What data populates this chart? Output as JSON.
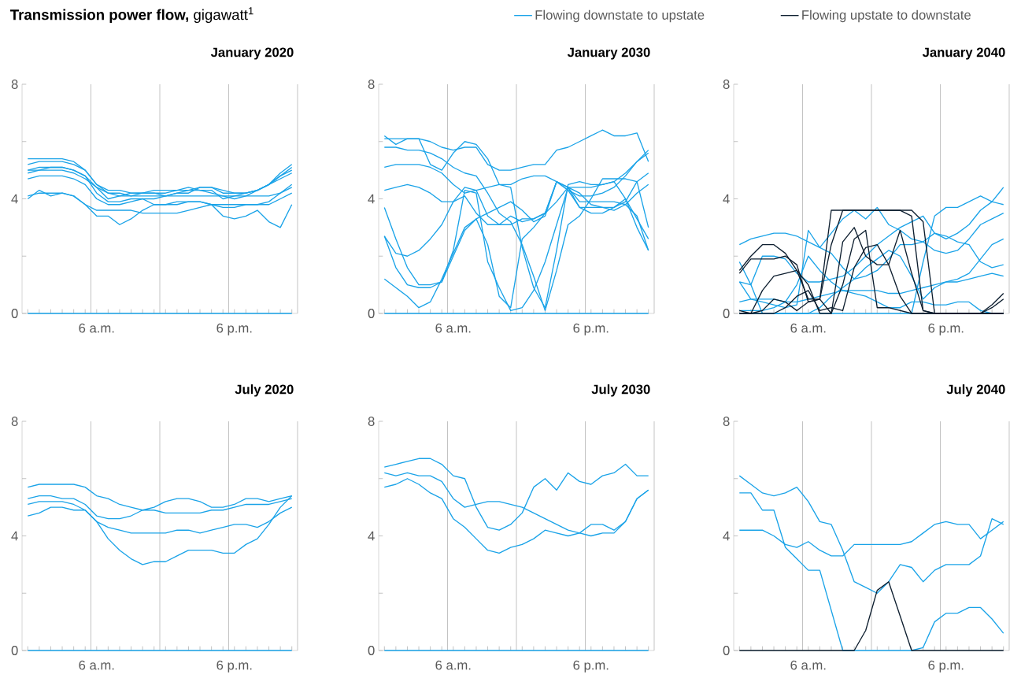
{
  "chart_data": [
    {
      "type": "line",
      "title": "January 2020",
      "annotations": [
        "**Transmission power flow,** gigawatt$^{1}$"
      ],
      "categories": [
        null,
        null,
        null,
        null,
        null,
        null,
        "6 a.m.",
        null,
        null,
        null,
        null,
        null,
        null,
        null,
        null,
        null,
        null,
        null,
        "6 p.m.",
        null,
        null,
        null,
        null,
        null
      ],
      "ylim": [
        0,
        8
      ],
      "yticks": [
        0,
        4,
        8
      ],
      "grid": "x",
      "series": [
        {
          "color": "#1aa3e8",
          "values": [
            5.4,
            5.4,
            5.4,
            5.4,
            5.3,
            5.0,
            4.5,
            4.3,
            4.3,
            4.2,
            4.2,
            4.2,
            4.1,
            4.2,
            4.2,
            4.4,
            4.4,
            4.3,
            4.2,
            4.2,
            4.3,
            4.5,
            4.9,
            5.2
          ]
        },
        {
          "color": "#1aa3e8",
          "values": [
            5.2,
            5.3,
            5.3,
            5.3,
            5.2,
            5.0,
            4.5,
            4.2,
            4.2,
            4.1,
            4.2,
            4.3,
            4.3,
            4.3,
            4.3,
            4.4,
            4.4,
            4.2,
            4.2,
            4.2,
            4.3,
            4.5,
            4.8,
            5.1
          ]
        },
        {
          "color": "#1aa3e8",
          "values": [
            5.0,
            5.1,
            5.1,
            5.1,
            5.0,
            4.8,
            4.4,
            4.0,
            4.1,
            4.2,
            4.2,
            4.2,
            4.2,
            4.3,
            4.4,
            4.3,
            4.3,
            4.0,
            4.1,
            4.2,
            4.3,
            4.5,
            4.8,
            5.0
          ]
        },
        {
          "color": "#1aa3e8",
          "values": [
            5.0,
            5.0,
            5.1,
            5.1,
            5.0,
            4.8,
            4.2,
            3.9,
            3.9,
            4.0,
            4.0,
            4.0,
            4.1,
            4.2,
            4.3,
            4.3,
            4.2,
            4.1,
            4.0,
            4.1,
            4.3,
            4.5,
            4.7,
            4.9
          ]
        },
        {
          "color": "#1aa3e8",
          "values": [
            4.7,
            4.8,
            4.8,
            4.8,
            4.7,
            4.5,
            4.0,
            3.8,
            3.8,
            3.9,
            4.0,
            3.8,
            3.8,
            3.9,
            3.9,
            3.9,
            3.8,
            3.7,
            3.7,
            3.8,
            3.8,
            3.9,
            4.2,
            4.4
          ]
        },
        {
          "color": "#1aa3e8",
          "values": [
            4.0,
            4.3,
            4.1,
            4.2,
            4.1,
            3.8,
            3.4,
            3.4,
            3.1,
            3.3,
            3.6,
            3.8,
            3.8,
            3.8,
            3.9,
            3.9,
            3.8,
            3.4,
            3.3,
            3.4,
            3.6,
            3.2,
            3.0,
            3.8
          ]
        },
        {
          "color": "#1aa3e8",
          "values": [
            4.1,
            4.2,
            4.2,
            4.2,
            4.1,
            3.8,
            3.6,
            3.6,
            3.6,
            3.6,
            3.5,
            3.5,
            3.5,
            3.5,
            3.6,
            3.7,
            3.8,
            3.8,
            3.8,
            3.8,
            3.8,
            3.8,
            4.0,
            4.2
          ]
        },
        {
          "color": "#1aa3e8",
          "values": [
            4.9,
            5.0,
            5.0,
            5.0,
            4.9,
            4.7,
            4.4,
            4.2,
            4.1,
            4.1,
            4.1,
            4.1,
            4.1,
            4.1,
            4.1,
            4.1,
            4.1,
            4.1,
            4.1,
            4.1,
            4.1,
            4.1,
            4.2,
            4.5
          ]
        },
        {
          "color": "#1aa3e8",
          "values": [
            0,
            0,
            0,
            0,
            0,
            0,
            0,
            0,
            0,
            0,
            0,
            0,
            0,
            0,
            0,
            0,
            0,
            0,
            0,
            0,
            0,
            0,
            0,
            0
          ]
        }
      ]
    },
    {
      "type": "line",
      "title": "January 2030",
      "categories": [
        null,
        null,
        null,
        null,
        null,
        null,
        "6 a.m.",
        null,
        null,
        null,
        null,
        null,
        null,
        null,
        null,
        null,
        null,
        null,
        "6 p.m.",
        null,
        null,
        null,
        null,
        null
      ],
      "ylim": [
        0,
        8
      ],
      "yticks": [
        0,
        4,
        8
      ],
      "grid": "x",
      "series": [
        {
          "color": "#1aa3e8",
          "values": [
            6.2,
            5.9,
            6.1,
            6.1,
            5.2,
            5.0,
            5.6,
            6.0,
            5.9,
            5.4,
            4.5,
            4.4,
            2.3,
            0.9,
            0.2,
            2.2,
            4.5,
            4.6,
            4.5,
            4.5,
            4.6,
            4.0,
            3.0,
            2.2
          ]
        },
        {
          "color": "#1aa3e8",
          "values": [
            6.1,
            6.1,
            6.1,
            6.1,
            6.0,
            5.8,
            5.7,
            5.8,
            5.8,
            5.2,
            5.0,
            5.0,
            5.1,
            5.2,
            5.2,
            5.7,
            5.8,
            6.0,
            6.2,
            6.4,
            6.2,
            6.2,
            6.3,
            5.3
          ]
        },
        {
          "color": "#1aa3e8",
          "values": [
            5.8,
            5.8,
            5.7,
            5.7,
            5.6,
            5.4,
            5.1,
            4.9,
            4.8,
            4.2,
            3.5,
            3.2,
            2.4,
            1.3,
            0.1,
            1.5,
            3.1,
            3.4,
            4.0,
            4.7,
            4.7,
            4.7,
            4.6,
            3.0
          ]
        },
        {
          "color": "#1aa3e8",
          "values": [
            5.1,
            5.2,
            5.2,
            5.2,
            5.1,
            4.9,
            4.5,
            4.2,
            4.3,
            4.4,
            4.5,
            4.5,
            4.7,
            4.8,
            4.8,
            4.6,
            4.4,
            4.4,
            4.4,
            4.5,
            4.6,
            4.9,
            5.3,
            5.6
          ]
        },
        {
          "color": "#1aa3e8",
          "values": [
            4.3,
            4.4,
            4.5,
            4.4,
            4.2,
            3.9,
            3.9,
            4.4,
            4.3,
            3.4,
            3.1,
            3.1,
            3.3,
            3.3,
            3.5,
            4.6,
            4.4,
            3.7,
            3.7,
            3.7,
            3.6,
            3.8,
            4.2,
            4.5
          ]
        },
        {
          "color": "#1aa3e8",
          "values": [
            3.7,
            2.6,
            1.6,
            1.0,
            1.0,
            1.1,
            2.2,
            4.3,
            4.2,
            1.8,
            0.9,
            0.1,
            0.2,
            0.8,
            1.8,
            3.1,
            4.4,
            4.2,
            3.8,
            3.7,
            3.7,
            3.9,
            4.6,
            4.9
          ]
        },
        {
          "color": "#1aa3e8",
          "values": [
            2.7,
            2.1,
            2.0,
            2.2,
            2.6,
            3.1,
            3.9,
            4.1,
            3.5,
            3.1,
            3.1,
            3.4,
            3.2,
            3.3,
            3.5,
            4.6,
            4.3,
            4.1,
            4.1,
            4.2,
            4.4,
            4.8,
            5.3,
            5.7
          ]
        },
        {
          "color": "#1aa3e8",
          "values": [
            1.2,
            0.9,
            0.6,
            0.2,
            0.4,
            1.2,
            2.1,
            3.0,
            3.3,
            3.5,
            3.7,
            3.9,
            3.6,
            3.2,
            3.4,
            4.6,
            4.3,
            3.7,
            3.5,
            3.5,
            3.7,
            4.0,
            3.3,
            2.6
          ]
        },
        {
          "color": "#1aa3e8",
          "values": [
            2.7,
            1.6,
            1.0,
            0.9,
            0.9,
            1.1,
            2.0,
            2.9,
            3.3,
            2.4,
            0.6,
            0.2,
            2.6,
            3.0,
            3.5,
            3.9,
            4.4,
            3.9,
            3.9,
            3.9,
            3.9,
            3.8,
            3.4,
            2.2
          ]
        },
        {
          "color": "#1aa3e8",
          "values": [
            0,
            0,
            0,
            0,
            0,
            0,
            0,
            0,
            0,
            0,
            0,
            0,
            0,
            0,
            0,
            0,
            0,
            0,
            0,
            0,
            0,
            0,
            0,
            0
          ]
        }
      ]
    },
    {
      "type": "line",
      "title": "January 2040",
      "legend": "top",
      "categories": [
        null,
        null,
        null,
        null,
        null,
        null,
        "6 a.m.",
        null,
        null,
        null,
        null,
        null,
        null,
        null,
        null,
        null,
        null,
        null,
        "6 p.m.",
        null,
        null,
        null,
        null,
        null
      ],
      "ylim": [
        0,
        8
      ],
      "yticks": [
        0,
        4,
        8
      ],
      "grid": "x",
      "series": [
        {
          "name": "Flowing downstate to upstate",
          "color": "#1aa3e8",
          "values": [
            2.4,
            2.6,
            2.7,
            2.8,
            2.8,
            2.7,
            2.5,
            2.3,
            2.1,
            1.6,
            1.2,
            1.3,
            1.5,
            1.9,
            2.4,
            2.4,
            2.5,
            2.8,
            2.7,
            2.5,
            2.4,
            1.8,
            1.6,
            1.7
          ]
        },
        {
          "color": "#1aa3e8",
          "values": [
            1.8,
            1.0,
            0.0,
            0.0,
            0.0,
            0.0,
            0.0,
            0.0,
            0.0,
            0.0,
            0.0,
            0.0,
            0.0,
            0.0,
            0.0,
            0.0,
            1.8,
            3.4,
            3.7,
            3.7,
            3.9,
            4.1,
            3.9,
            3.8
          ]
        },
        {
          "color": "#1aa3e8",
          "values": [
            1.1,
            1.0,
            2.0,
            2.0,
            1.9,
            1.4,
            1.1,
            1.1,
            1.2,
            1.3,
            1.6,
            2.0,
            2.4,
            2.7,
            3.0,
            3.2,
            3.4,
            2.8,
            2.6,
            2.8,
            3.1,
            3.6,
            3.9,
            4.4
          ]
        },
        {
          "color": "#1aa3e8",
          "values": [
            1.1,
            0.5,
            0.4,
            0.3,
            0.2,
            0.3,
            2.9,
            2.3,
            2.8,
            3.3,
            3.6,
            3.3,
            3.7,
            3.1,
            2.9,
            2.6,
            2.5,
            2.2,
            2.1,
            2.2,
            2.6,
            3.1,
            3.3,
            3.5
          ]
        },
        {
          "color": "#1aa3e8",
          "values": [
            0.4,
            0.5,
            0.5,
            0.5,
            0.4,
            0.4,
            0.5,
            0.6,
            0.7,
            0.8,
            0.8,
            0.8,
            0.8,
            0.7,
            0.7,
            0.8,
            0.9,
            1.0,
            1.1,
            1.1,
            1.2,
            1.3,
            1.4,
            1.3
          ]
        },
        {
          "color": "#1aa3e8",
          "values": [
            0.1,
            0.1,
            0.1,
            0.2,
            0.4,
            1.0,
            2.0,
            1.5,
            1.1,
            0.8,
            0.7,
            0.6,
            0.4,
            0.2,
            0.2,
            0.4,
            0.4,
            0.3,
            0.3,
            0.4,
            0.4,
            0.1,
            0.0,
            0.0
          ]
        },
        {
          "color": "#1aa3e8",
          "values": [
            0,
            0,
            0,
            0,
            0,
            0,
            0,
            0.2,
            0.6,
            0.9,
            1.2,
            1.6,
            1.9,
            2.2,
            2.0,
            1.3,
            0.5,
            0.9,
            1.1,
            1.2,
            1.4,
            1.9,
            2.4,
            2.6
          ]
        },
        {
          "name": "Flowing upstate to downstate",
          "color": "#0d1e2f",
          "values": [
            1.5,
            2.0,
            2.4,
            2.4,
            2.1,
            1.5,
            0.5,
            0.5,
            3.6,
            3.6,
            3.6,
            3.6,
            3.6,
            3.6,
            3.6,
            3.6,
            3.2,
            0.0,
            0,
            0,
            0,
            0,
            0,
            0
          ]
        },
        {
          "color": "#0d1e2f",
          "values": [
            1.4,
            1.9,
            1.9,
            1.9,
            2.0,
            1.7,
            0.4,
            0.5,
            2.4,
            3.6,
            3.6,
            3.6,
            3.6,
            3.6,
            3.6,
            3.4,
            0.1,
            0,
            0,
            0,
            0,
            0,
            0,
            0
          ]
        },
        {
          "color": "#0d1e2f",
          "values": [
            0,
            0,
            0.8,
            1.3,
            1.4,
            1.5,
            1.0,
            0,
            0,
            2.5,
            3.0,
            2.0,
            1.7,
            1.7,
            2.9,
            1.4,
            0.1,
            0,
            0,
            0,
            0,
            0,
            0.3,
            0.7
          ]
        },
        {
          "color": "#0d1e2f",
          "values": [
            0.1,
            0,
            0.1,
            0.5,
            0.4,
            0.1,
            0.4,
            0.5,
            0,
            1.0,
            2.6,
            2.9,
            0.2,
            0.2,
            0.1,
            0,
            0,
            0,
            0,
            0,
            0,
            0,
            0.2,
            0.5
          ]
        },
        {
          "color": "#0d1e2f",
          "values": [
            0,
            0,
            0,
            0,
            0.2,
            0.6,
            0.8,
            0.1,
            0.2,
            0.1,
            1.6,
            2.3,
            2.4,
            1.7,
            0.6,
            0,
            0,
            0,
            0,
            0,
            0,
            0,
            0,
            0
          ]
        }
      ]
    },
    {
      "type": "line",
      "title": "July 2020",
      "categories": [
        null,
        null,
        null,
        null,
        null,
        null,
        "6 a.m.",
        null,
        null,
        null,
        null,
        null,
        null,
        null,
        null,
        null,
        null,
        null,
        "6 p.m.",
        null,
        null,
        null,
        null,
        null
      ],
      "ylim": [
        0,
        8
      ],
      "yticks": [
        0,
        4,
        8
      ],
      "grid": "x",
      "series": [
        {
          "color": "#1aa3e8",
          "values": [
            5.7,
            5.8,
            5.8,
            5.8,
            5.8,
            5.7,
            5.4,
            5.3,
            5.1,
            5.0,
            4.9,
            4.9,
            4.8,
            4.8,
            4.8,
            4.8,
            4.9,
            4.9,
            5.0,
            5.1,
            5.1,
            5.1,
            5.2,
            5.3
          ]
        },
        {
          "color": "#1aa3e8",
          "values": [
            5.3,
            5.4,
            5.4,
            5.3,
            5.3,
            5.1,
            4.7,
            4.6,
            4.6,
            4.7,
            4.9,
            5.0,
            5.2,
            5.3,
            5.3,
            5.2,
            5.0,
            5.0,
            5.1,
            5.3,
            5.3,
            5.2,
            5.3,
            5.4
          ]
        },
        {
          "color": "#1aa3e8",
          "values": [
            5.1,
            5.2,
            5.2,
            5.2,
            5.1,
            4.9,
            4.5,
            4.3,
            4.2,
            4.1,
            4.1,
            4.1,
            4.1,
            4.2,
            4.2,
            4.1,
            4.2,
            4.3,
            4.4,
            4.4,
            4.3,
            4.5,
            4.8,
            5.0
          ]
        },
        {
          "color": "#1aa3e8",
          "values": [
            4.7,
            4.8,
            5.0,
            5.0,
            4.9,
            4.9,
            4.5,
            3.9,
            3.5,
            3.2,
            3.0,
            3.1,
            3.1,
            3.3,
            3.5,
            3.5,
            3.5,
            3.4,
            3.4,
            3.7,
            3.9,
            4.4,
            5.0,
            5.4
          ]
        },
        {
          "color": "#1aa3e8",
          "values": [
            0,
            0,
            0,
            0,
            0,
            0,
            0,
            0,
            0,
            0,
            0,
            0,
            0,
            0,
            0,
            0,
            0,
            0,
            0,
            0,
            0,
            0,
            0,
            0
          ]
        }
      ]
    },
    {
      "type": "line",
      "title": "July 2030",
      "categories": [
        null,
        null,
        null,
        null,
        null,
        null,
        "6 a.m.",
        null,
        null,
        null,
        null,
        null,
        null,
        null,
        null,
        null,
        null,
        null,
        "6 p.m.",
        null,
        null,
        null,
        null,
        null
      ],
      "ylim": [
        0,
        8
      ],
      "yticks": [
        0,
        4,
        8
      ],
      "grid": "x",
      "series": [
        {
          "color": "#1aa3e8",
          "values": [
            6.4,
            6.5,
            6.6,
            6.7,
            6.7,
            6.5,
            6.1,
            6.0,
            5.0,
            4.3,
            4.2,
            4.4,
            4.8,
            5.7,
            6.0,
            5.6,
            6.2,
            5.9,
            5.8,
            6.1,
            6.2,
            6.5,
            6.1,
            6.1
          ]
        },
        {
          "color": "#1aa3e8",
          "values": [
            6.2,
            6.1,
            6.2,
            6.1,
            6.1,
            5.9,
            5.3,
            5.0,
            5.1,
            5.2,
            5.2,
            5.1,
            5.0,
            4.8,
            4.6,
            4.4,
            4.2,
            4.1,
            4.0,
            4.1,
            4.1,
            4.5,
            5.3,
            5.6
          ]
        },
        {
          "color": "#1aa3e8",
          "values": [
            5.7,
            5.8,
            6.0,
            5.8,
            5.5,
            5.3,
            4.6,
            4.3,
            3.9,
            3.5,
            3.4,
            3.6,
            3.7,
            3.9,
            4.2,
            4.1,
            4.0,
            4.1,
            4.4,
            4.4,
            4.2,
            4.5,
            5.3,
            5.6
          ]
        },
        {
          "color": "#1aa3e8",
          "values": [
            0,
            0,
            0,
            0,
            0,
            0,
            0,
            0,
            0,
            0,
            0,
            0,
            0,
            0,
            0,
            0,
            0,
            0,
            0,
            0,
            0,
            0,
            0,
            0
          ]
        }
      ]
    },
    {
      "type": "line",
      "title": "July 2040",
      "categories": [
        null,
        null,
        null,
        null,
        null,
        null,
        "6 a.m.",
        null,
        null,
        null,
        null,
        null,
        null,
        null,
        null,
        null,
        null,
        null,
        "6 p.m.",
        null,
        null,
        null,
        null,
        null
      ],
      "ylim": [
        0,
        8
      ],
      "yticks": [
        0,
        4,
        8
      ],
      "grid": "x",
      "series": [
        {
          "color": "#1aa3e8",
          "values": [
            6.1,
            5.8,
            5.5,
            5.4,
            5.5,
            5.7,
            5.2,
            4.5,
            4.4,
            3.5,
            2.4,
            2.2,
            2.0,
            2.4,
            3.0,
            2.9,
            2.4,
            2.8,
            3.0,
            3.0,
            3.0,
            3.3,
            4.6,
            4.4
          ]
        },
        {
          "color": "#1aa3e8",
          "values": [
            5.5,
            5.5,
            4.9,
            4.9,
            3.6,
            3.2,
            2.8,
            2.8,
            1.4,
            0.0,
            0.0,
            0,
            0,
            0,
            0,
            0,
            0.1,
            1.0,
            1.3,
            1.3,
            1.5,
            1.5,
            1.1,
            0.6
          ]
        },
        {
          "color": "#1aa3e8",
          "values": [
            4.2,
            4.2,
            4.2,
            4.0,
            3.7,
            3.6,
            3.8,
            3.5,
            3.3,
            3.3,
            3.7,
            3.7,
            3.7,
            3.7,
            3.7,
            3.8,
            4.1,
            4.4,
            4.5,
            4.4,
            4.4,
            3.9,
            4.2,
            4.5
          ]
        },
        {
          "color": "#0d1e2f",
          "values": [
            0,
            0,
            0,
            0,
            0,
            0,
            0,
            0,
            0,
            0,
            0,
            0.7,
            2.1,
            2.4,
            1.2,
            0,
            0,
            0,
            0,
            0,
            0,
            0,
            0,
            0
          ]
        }
      ]
    }
  ]
}
